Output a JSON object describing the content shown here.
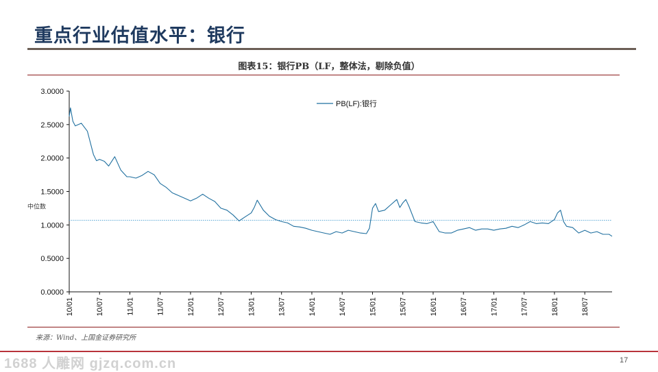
{
  "slide": {
    "title": "重点行业估值水平：银行",
    "page_number": "17",
    "source": "来源：Wind、上国金证券研究所",
    "watermark": "1688 人雕网 gjzq.com.cn"
  },
  "colors": {
    "title": "#1f3a5f",
    "series": "#1f6f9f",
    "median": "#5aa7d6",
    "accent_rule": "#8b1a1a"
  },
  "chart_data": {
    "type": "line",
    "title": "图表15：银行PB（LF，整体法，剔除负值）",
    "series": [
      {
        "name": "PB(LF):银行",
        "x": [
          2010.0,
          2010.02,
          2010.06,
          2010.1,
          2010.2,
          2010.3,
          2010.4,
          2010.45,
          2010.5,
          2010.58,
          2010.65,
          2010.75,
          2010.85,
          2010.95,
          2011.0,
          2011.1,
          2011.2,
          2011.3,
          2011.4,
          2011.5,
          2011.6,
          2011.7,
          2011.8,
          2011.9,
          2012.0,
          2012.1,
          2012.2,
          2012.3,
          2012.4,
          2012.5,
          2012.6,
          2012.7,
          2012.8,
          2012.9,
          2013.0,
          2013.05,
          2013.1,
          2013.2,
          2013.3,
          2013.4,
          2013.5,
          2013.6,
          2013.7,
          2013.8,
          2013.9,
          2014.0,
          2014.1,
          2014.2,
          2014.3,
          2014.4,
          2014.5,
          2014.6,
          2014.7,
          2014.8,
          2014.9,
          2014.95,
          2015.0,
          2015.05,
          2015.1,
          2015.2,
          2015.3,
          2015.4,
          2015.45,
          2015.5,
          2015.55,
          2015.6,
          2015.7,
          2015.8,
          2015.9,
          2016.0,
          2016.1,
          2016.2,
          2016.3,
          2016.4,
          2016.5,
          2016.6,
          2016.7,
          2016.8,
          2016.9,
          2017.0,
          2017.1,
          2017.2,
          2017.3,
          2017.4,
          2017.5,
          2017.6,
          2017.7,
          2017.8,
          2017.9,
          2018.0,
          2018.05,
          2018.1,
          2018.15,
          2018.2,
          2018.3,
          2018.4,
          2018.5,
          2018.6,
          2018.7,
          2018.8,
          2018.9,
          2018.95
        ],
        "y": [
          2.62,
          2.75,
          2.55,
          2.48,
          2.52,
          2.4,
          2.05,
          1.96,
          1.98,
          1.95,
          1.88,
          2.02,
          1.82,
          1.72,
          1.72,
          1.7,
          1.74,
          1.8,
          1.75,
          1.62,
          1.56,
          1.48,
          1.44,
          1.4,
          1.36,
          1.4,
          1.46,
          1.4,
          1.35,
          1.25,
          1.22,
          1.15,
          1.06,
          1.12,
          1.18,
          1.26,
          1.37,
          1.22,
          1.13,
          1.08,
          1.05,
          1.03,
          0.98,
          0.97,
          0.95,
          0.92,
          0.9,
          0.88,
          0.86,
          0.9,
          0.88,
          0.92,
          0.9,
          0.88,
          0.87,
          0.95,
          1.25,
          1.32,
          1.2,
          1.22,
          1.3,
          1.38,
          1.26,
          1.33,
          1.38,
          1.28,
          1.05,
          1.03,
          1.02,
          1.05,
          0.9,
          0.88,
          0.88,
          0.92,
          0.94,
          0.96,
          0.92,
          0.94,
          0.94,
          0.92,
          0.94,
          0.95,
          0.98,
          0.96,
          1.0,
          1.05,
          1.02,
          1.03,
          1.02,
          1.08,
          1.18,
          1.22,
          1.05,
          0.98,
          0.96,
          0.88,
          0.92,
          0.88,
          0.9,
          0.86,
          0.86,
          0.83
        ]
      }
    ],
    "median": {
      "label": "中位数",
      "value": 1.07
    },
    "xlim": [
      2010.0,
      2018.95
    ],
    "ylim": [
      0,
      3
    ],
    "yticks": [
      0,
      0.5,
      1.0,
      1.5,
      2.0,
      2.5,
      3.0
    ],
    "ytick_labels": [
      "0.0000",
      "0.5000",
      "1.0000",
      "1.5000",
      "2.0000",
      "2.5000",
      "3.0000"
    ],
    "xtick_values": [
      2010.0,
      2010.5,
      2011.0,
      2011.5,
      2012.0,
      2012.5,
      2013.0,
      2013.5,
      2014.0,
      2014.5,
      2015.0,
      2015.5,
      2016.0,
      2016.5,
      2017.0,
      2017.5,
      2018.0,
      2018.5
    ],
    "xtick_labels": [
      "10/01",
      "10/07",
      "11/01",
      "11/07",
      "12/01",
      "12/07",
      "13/01",
      "13/07",
      "14/01",
      "14/07",
      "15/01",
      "15/07",
      "16/01",
      "16/07",
      "17/01",
      "17/07",
      "18/01",
      "18/07"
    ],
    "legend": "top-center",
    "grid": false
  }
}
